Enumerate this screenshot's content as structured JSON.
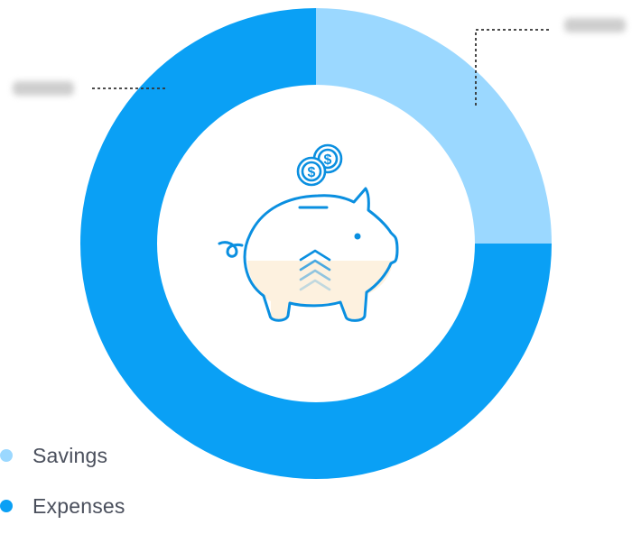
{
  "chart_data": {
    "type": "pie",
    "title": "",
    "series": [
      {
        "name": "Savings",
        "value": 25,
        "value_label": "",
        "color": "#9bd8ff"
      },
      {
        "name": "Expenses",
        "value": 75,
        "value_label": "",
        "color": "#0aa0f5"
      }
    ],
    "legend_position": "bottom-left",
    "center_icon": "piggy-bank-icon",
    "coin_icon": "dollar-coin-icon",
    "arrow_icon": "chevron-up-icon"
  },
  "colors": {
    "ring_savings": "#9bd8ff",
    "ring_expenses": "#0aa0f5",
    "icon_stroke": "#0a8fe0",
    "icon_fill": "#fdf1df",
    "leader_line": "#333333",
    "legend_text": "#4a4f5c"
  }
}
